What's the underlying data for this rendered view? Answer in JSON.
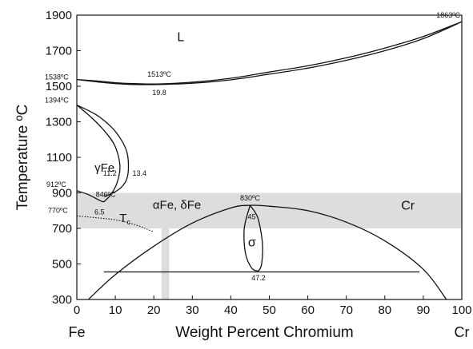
{
  "chart_data": {
    "type": "phase-diagram",
    "title": "",
    "xlabel": "Weight Percent Chromium",
    "ylabel": "Temperature ºC",
    "xlim": [
      0,
      100
    ],
    "ylim": [
      300,
      1900
    ],
    "x_ticks": [
      0,
      10,
      20,
      30,
      40,
      50,
      60,
      70,
      80,
      90,
      100
    ],
    "y_ticks": [
      300,
      500,
      700,
      900,
      1100,
      1300,
      1500,
      1700,
      1900
    ],
    "end_labels": {
      "left": "Fe",
      "right": "Cr"
    },
    "grid": false,
    "highlight_band": {
      "y_range": [
        700,
        900
      ],
      "color": "#dddddd"
    },
    "highlight_strip": {
      "x_range": [
        22,
        24
      ],
      "y_range": [
        300,
        700
      ],
      "color": "#dddddd"
    },
    "phase_labels": {
      "liquid": "L",
      "gamma": "γFe",
      "alpha_delta": "αFe, δFe",
      "sigma": "σ",
      "cr": "Cr",
      "tc_main": "T",
      "tc_sub": "c"
    },
    "annotations": [
      {
        "text": "1538ºC",
        "x": 0,
        "y": 1538
      },
      {
        "text": "1513ºC",
        "x": 21,
        "y": 1513
      },
      {
        "text": "19.8",
        "x": 21,
        "y": 1513
      },
      {
        "text": "1863ºC",
        "x": 100,
        "y": 1863
      },
      {
        "text": "1394ºC",
        "x": 0,
        "y": 1394
      },
      {
        "text": "912ºC",
        "x": 0,
        "y": 912
      },
      {
        "text": "846ºC",
        "x": 7.5,
        "y": 846
      },
      {
        "text": "11.2",
        "x": 11.2,
        "y": 1050
      },
      {
        "text": "13.4",
        "x": 13.4,
        "y": 1050
      },
      {
        "text": "6.5",
        "x": 6.5,
        "y": 846
      },
      {
        "text": "770ºC",
        "x": 0,
        "y": 770
      },
      {
        "text": "830ºC",
        "x": 45,
        "y": 830
      },
      {
        "text": "45",
        "x": 45,
        "y": 820
      },
      {
        "text": "47.2",
        "x": 47.2,
        "y": 475
      }
    ],
    "series": [
      {
        "name": "liquidus",
        "values": [
          [
            0,
            1538
          ],
          [
            5,
            1530
          ],
          [
            10,
            1520
          ],
          [
            15,
            1515
          ],
          [
            21,
            1513
          ],
          [
            30,
            1523
          ],
          [
            40,
            1545
          ],
          [
            50,
            1580
          ],
          [
            60,
            1615
          ],
          [
            70,
            1660
          ],
          [
            80,
            1715
          ],
          [
            90,
            1780
          ],
          [
            100,
            1863
          ]
        ]
      },
      {
        "name": "solidus",
        "values": [
          [
            0,
            1538
          ],
          [
            5,
            1525
          ],
          [
            10,
            1515
          ],
          [
            15,
            1510
          ],
          [
            21,
            1510
          ],
          [
            30,
            1517
          ],
          [
            40,
            1536
          ],
          [
            50,
            1568
          ],
          [
            60,
            1602
          ],
          [
            70,
            1646
          ],
          [
            80,
            1700
          ],
          [
            90,
            1768
          ],
          [
            100,
            1863
          ]
        ]
      },
      {
        "name": "gamma-loop-outer",
        "values": [
          [
            0,
            1394
          ],
          [
            5,
            1340
          ],
          [
            9,
            1270
          ],
          [
            11.5,
            1200
          ],
          [
            13,
            1130
          ],
          [
            13.4,
            1050
          ],
          [
            13,
            980
          ],
          [
            11.5,
            930
          ],
          [
            9,
            895
          ],
          [
            7,
            880
          ]
        ]
      },
      {
        "name": "gamma-loop-inner",
        "values": [
          [
            0,
            1394
          ],
          [
            4,
            1320
          ],
          [
            7.5,
            1240
          ],
          [
            10,
            1160
          ],
          [
            11.2,
            1050
          ],
          [
            10.5,
            960
          ],
          [
            9,
            895
          ],
          [
            7.5,
            860
          ],
          [
            6.5,
            852
          ],
          [
            3,
            890
          ],
          [
            0,
            912
          ]
        ]
      },
      {
        "name": "curie-Tc",
        "values": [
          [
            0,
            770
          ],
          [
            5,
            760
          ],
          [
            10,
            748
          ],
          [
            15,
            722
          ],
          [
            20,
            680
          ]
        ]
      },
      {
        "name": "sigma-dome",
        "values": [
          [
            3,
            300
          ],
          [
            10,
            440
          ],
          [
            20,
            600
          ],
          [
            30,
            730
          ],
          [
            40,
            815
          ],
          [
            45,
            830
          ],
          [
            50,
            825
          ],
          [
            60,
            800
          ],
          [
            70,
            735
          ],
          [
            80,
            630
          ],
          [
            90,
            470
          ],
          [
            96,
            300
          ]
        ]
      },
      {
        "name": "sigma-left",
        "values": [
          [
            45,
            830
          ],
          [
            43.5,
            700
          ],
          [
            43.8,
            560
          ],
          [
            45.5,
            475
          ],
          [
            47.2,
            460
          ]
        ]
      },
      {
        "name": "sigma-right",
        "values": [
          [
            45,
            830
          ],
          [
            47,
            760
          ],
          [
            48.2,
            620
          ],
          [
            48,
            500
          ],
          [
            47.2,
            460
          ]
        ]
      },
      {
        "name": "eutectoid-line",
        "values": [
          [
            7,
            455
          ],
          [
            89,
            455
          ]
        ]
      }
    ]
  }
}
